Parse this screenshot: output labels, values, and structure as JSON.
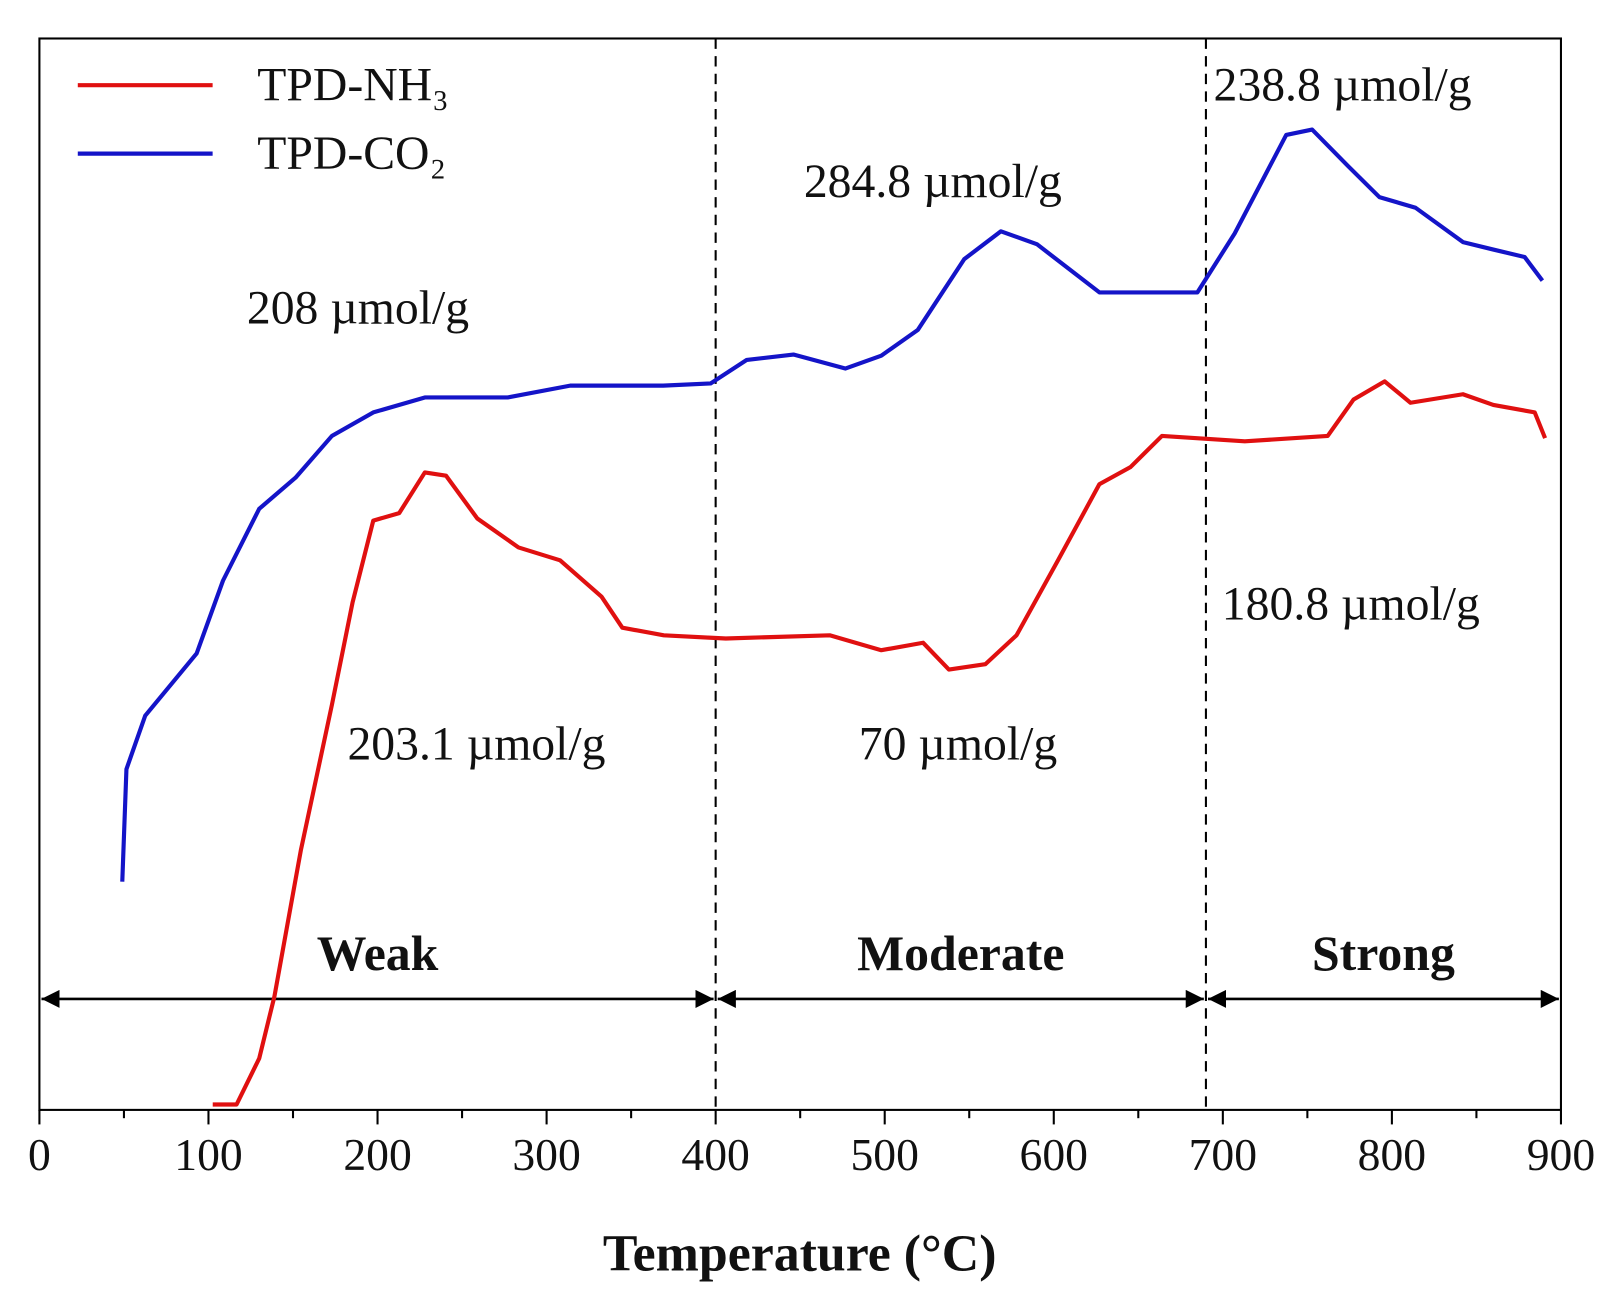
{
  "chart_data": {
    "type": "line",
    "xlabel": "Temperature (°C)",
    "xlim": [
      0,
      900
    ],
    "xticks": [
      0,
      100,
      200,
      300,
      400,
      500,
      600,
      700,
      800,
      900
    ],
    "xminorticks": [
      50,
      150,
      250,
      350,
      450,
      550,
      650,
      750,
      850
    ],
    "ylim": [
      0,
      100
    ],
    "vlines": [
      400,
      690
    ],
    "regions": [
      {
        "label": "Weak",
        "range": [
          0,
          400
        ]
      },
      {
        "label": "Moderate",
        "range": [
          400,
          690
        ]
      },
      {
        "label": "Strong",
        "range": [
          690,
          900
        ]
      }
    ],
    "annotations": [
      "208 µmol/g",
      "284.8 µmol/g",
      "238.8 µmol/g",
      "180.8 µmol/g",
      "203.1 µmol/g",
      "70 µmol/g"
    ],
    "legend": "upper left",
    "series": [
      {
        "name": "TPD-NH₃",
        "color": "#e01010",
        "x": [
          102.5,
          116.6,
          130,
          139,
          154.6,
          173,
          185.3,
          197.5,
          212.8,
          228,
          240.5,
          259,
          283.4,
          308,
          332.5,
          344.8,
          369.3,
          406,
          467.5,
          498,
          522.7,
          538,
          559.5,
          578,
          602.5,
          627,
          645.4,
          664,
          713,
          762,
          777.3,
          795.7,
          811,
          842,
          860,
          884.5,
          890.6
        ],
        "values": [
          0.5,
          0.5,
          4.8,
          10.6,
          24.2,
          37.8,
          47.4,
          55,
          55.7,
          59.5,
          59.2,
          55.2,
          52.5,
          51.3,
          47.9,
          45,
          44.3,
          44,
          44.3,
          42.9,
          43.6,
          41.1,
          41.6,
          44.3,
          51.3,
          58.4,
          60,
          62.9,
          62.4,
          62.9,
          66.3,
          68,
          66,
          66.8,
          65.8,
          65.1,
          62.7
        ]
      },
      {
        "name": "TPD-CO₂",
        "color": "#1414c8",
        "x": [
          49,
          51.5,
          62.6,
          93,
          108.6,
          130,
          151.5,
          173,
          197.5,
          228,
          277,
          314,
          369,
          397,
          418.4,
          446,
          476.7,
          498,
          519.6,
          547,
          568.7,
          590,
          627,
          685,
          707,
          737.5,
          752.8,
          774,
          792.6,
          814,
          842,
          860,
          878.5,
          889
        ],
        "values": [
          21.3,
          31.8,
          36.8,
          42.6,
          49.4,
          56.1,
          59,
          62.9,
          65.1,
          66.5,
          66.5,
          67.6,
          67.6,
          67.8,
          70,
          70.5,
          69.2,
          70.4,
          72.8,
          79.4,
          82,
          80.8,
          76.3,
          76.3,
          81.8,
          91,
          91.5,
          88.1,
          85.2,
          84.2,
          81,
          80.3,
          79.6,
          77.4
        ]
      }
    ]
  }
}
